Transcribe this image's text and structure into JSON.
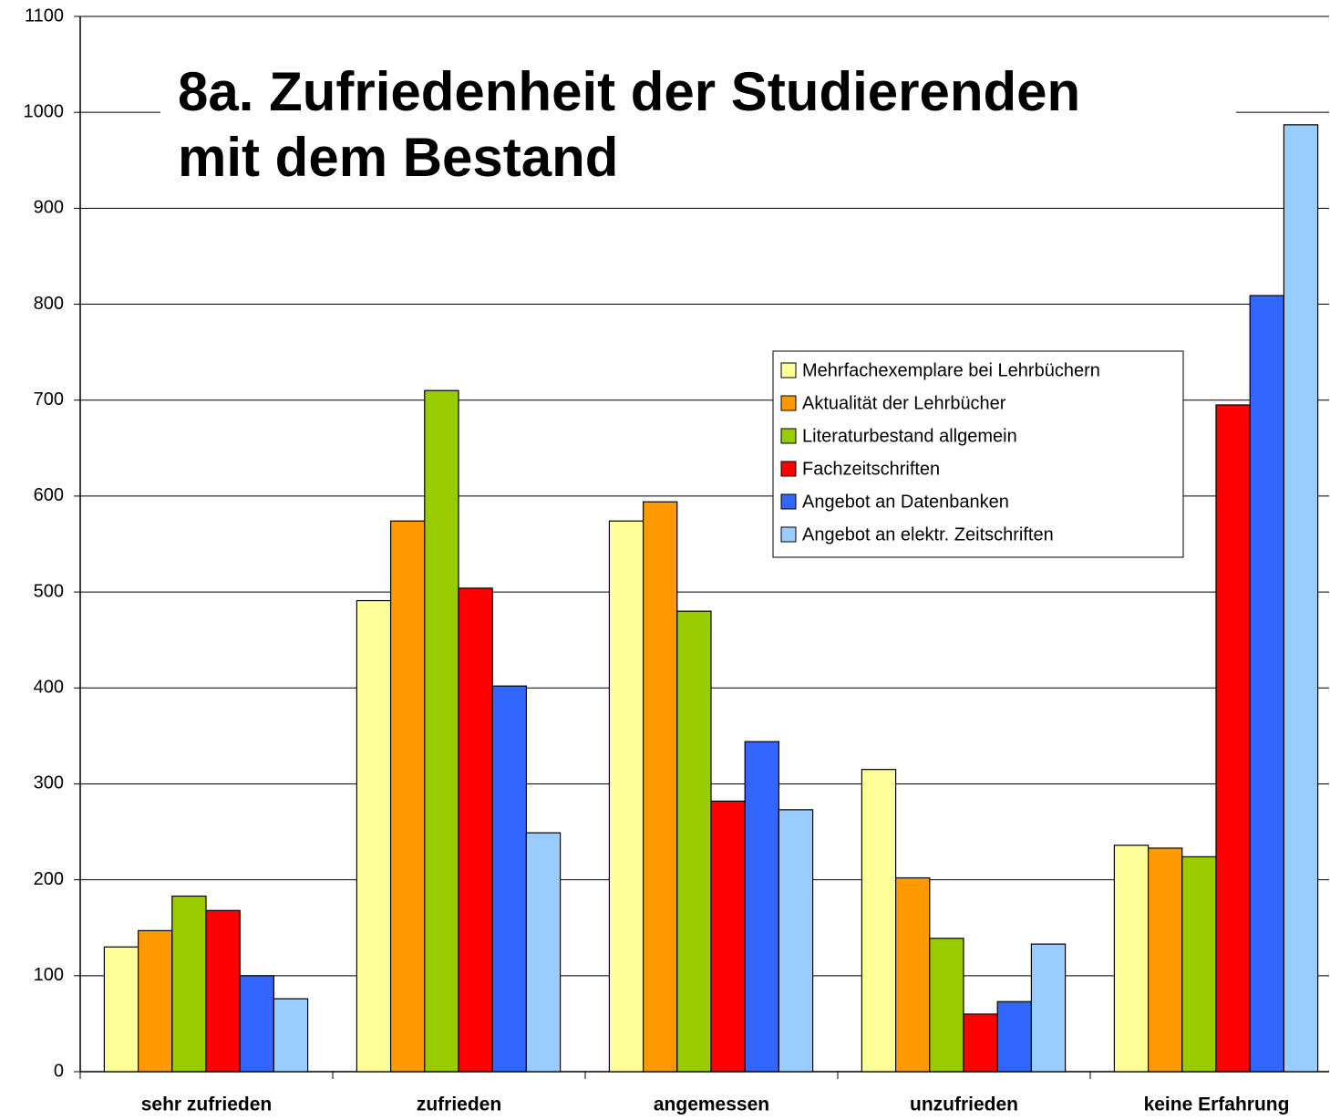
{
  "chart_data": {
    "type": "bar",
    "title": "8a. Zufriedenheit der Studierenden mit dem Bestand",
    "categories": [
      "sehr zufrieden",
      "zufrieden",
      "angemessen",
      "unzufrieden",
      "keine Erfahrung"
    ],
    "series": [
      {
        "name": "Mehrfachexemplare bei Lehrbüchern",
        "color": "#ffff99",
        "values": [
          130,
          491,
          574,
          315,
          236
        ]
      },
      {
        "name": "Aktualität der Lehrbücher",
        "color": "#ff9900",
        "values": [
          147,
          574,
          594,
          202,
          233
        ]
      },
      {
        "name": "Literaturbestand allgemein",
        "color": "#99cc00",
        "values": [
          183,
          710,
          480,
          139,
          224
        ]
      },
      {
        "name": "Fachzeitschriften",
        "color": "#ff0000",
        "values": [
          168,
          504,
          282,
          60,
          695
        ]
      },
      {
        "name": "Angebot an Datenbanken",
        "color": "#3366ff",
        "values": [
          100,
          402,
          344,
          73,
          809
        ]
      },
      {
        "name": "Angebot an elektr. Zeitschriften",
        "color": "#99ccff",
        "values": [
          76,
          249,
          273,
          133,
          987
        ]
      }
    ],
    "ylim": [
      0,
      1100
    ],
    "yticks": [
      0,
      100,
      200,
      300,
      400,
      500,
      600,
      700,
      800,
      900,
      1000,
      1100
    ],
    "grid": true,
    "legend": "right"
  }
}
